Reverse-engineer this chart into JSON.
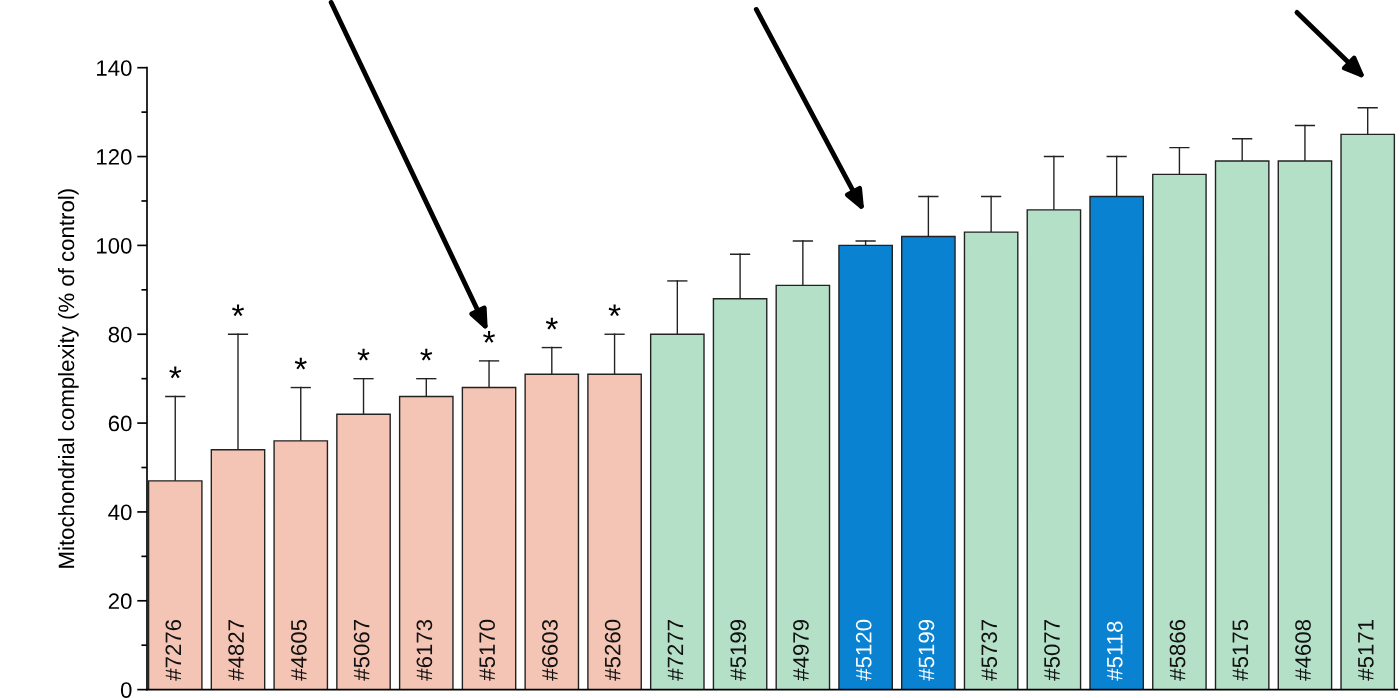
{
  "chart_data": {
    "type": "bar",
    "ylabel": "Mitochondrial complexity (% of control)",
    "categories": [
      "#7276",
      "#4827",
      "#4605",
      "#5067",
      "#6173",
      "#5170",
      "#6603",
      "#5260",
      "#7277",
      "#5199",
      "#4979",
      "#5120",
      "#5199",
      "#5737",
      "#5077",
      "#5118",
      "#5866",
      "#5175",
      "#4608",
      "#5171"
    ],
    "values": [
      47,
      54,
      56,
      62,
      66,
      68,
      71,
      71,
      80,
      88,
      91,
      100,
      102,
      103,
      108,
      111,
      116,
      119,
      119,
      125
    ],
    "errors": [
      [
        47,
        66
      ],
      [
        54,
        80
      ],
      [
        56,
        68
      ],
      [
        62,
        70
      ],
      [
        66,
        70
      ],
      [
        68,
        74
      ],
      [
        71,
        77
      ],
      [
        71,
        80
      ],
      [
        80,
        92
      ],
      [
        88,
        98
      ],
      [
        91,
        101
      ],
      [
        100,
        101
      ],
      [
        102,
        111
      ],
      [
        103,
        111
      ],
      [
        108,
        120
      ],
      [
        111,
        120
      ],
      [
        116,
        122
      ],
      [
        119,
        124
      ],
      [
        119,
        127
      ],
      [
        125,
        131
      ]
    ],
    "colors": [
      "#f4c4b4",
      "#f4c4b4",
      "#f4c4b4",
      "#f4c4b4",
      "#f4c4b4",
      "#f4c4b4",
      "#f4c4b4",
      "#f4c4b4",
      "#b4e0c8",
      "#b4e0c8",
      "#b4e0c8",
      "#0a82d2",
      "#0a82d2",
      "#b4e0c8",
      "#b4e0c8",
      "#0a82d2",
      "#b4e0c8",
      "#b4e0c8",
      "#b4e0c8",
      "#b4e0c8"
    ],
    "ylim": [
      0,
      140
    ],
    "yticks": [
      0,
      20,
      40,
      60,
      80,
      100,
      120,
      140
    ],
    "grid": false,
    "annotations": [
      {
        "text": "*",
        "x": "#7276",
        "y": 66
      },
      {
        "text": "*",
        "x": "#4827",
        "y": 80
      },
      {
        "text": "*",
        "x": "#4605",
        "y": 68
      },
      {
        "text": "*",
        "x": "#5067",
        "y": 70
      },
      {
        "text": "*",
        "x": "#6173",
        "y": 70
      },
      {
        "text": "*",
        "x": "#5170",
        "y": 74
      },
      {
        "text": "*",
        "x": "#6603",
        "y": 77
      },
      {
        "text": "*",
        "x": "#5260",
        "y": 80
      }
    ]
  }
}
